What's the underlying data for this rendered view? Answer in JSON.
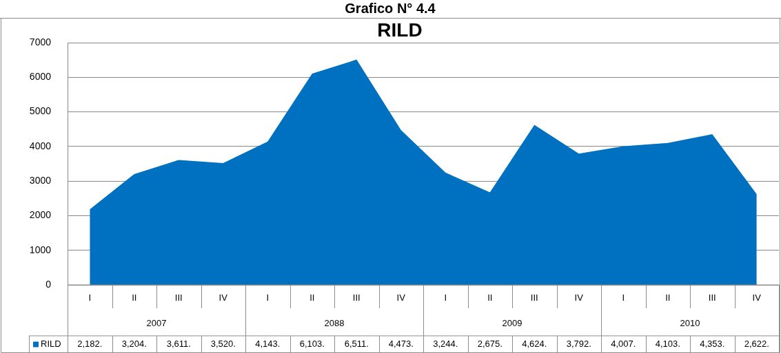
{
  "chart_data": {
    "type": "area",
    "title": "Grafico N° 4.4",
    "subtitle": "RILD",
    "categories": [
      "I",
      "II",
      "III",
      "IV",
      "I",
      "II",
      "III",
      "IV",
      "I",
      "II",
      "III",
      "IV",
      "I",
      "II",
      "III",
      "IV"
    ],
    "annotations": [
      "2007",
      "2088",
      "2009",
      "2010"
    ],
    "series": [
      {
        "name": "RILD",
        "color": "#0070c0",
        "values": [
          2182,
          3204,
          3611,
          3520,
          4143,
          6103,
          6511,
          4473,
          3244,
          2675,
          4624,
          3792,
          4007,
          4103,
          4353,
          2622
        ],
        "value_labels": [
          "2,182.",
          "3,204.",
          "3,611.",
          "3,520.",
          "4,143.",
          "6,103.",
          "6,511.",
          "4,473.",
          "3,244.",
          "2,675.",
          "4,624.",
          "3,792.",
          "4,007.",
          "4,103.",
          "4,353.",
          "2,622."
        ]
      }
    ],
    "ylim": [
      0,
      7000
    ],
    "yticks": [
      0,
      1000,
      2000,
      3000,
      4000,
      5000,
      6000,
      7000
    ],
    "grid": "y",
    "legend": "bottom"
  }
}
